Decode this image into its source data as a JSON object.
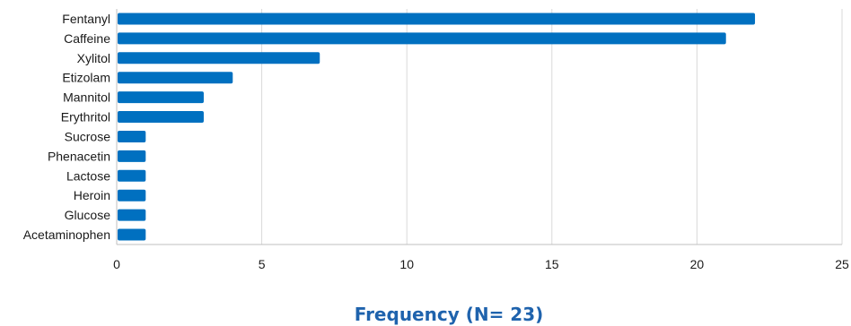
{
  "chart_data": {
    "type": "bar",
    "orientation": "horizontal",
    "categories": [
      "Fentanyl",
      "Caffeine",
      "Xylitol",
      "Etizolam",
      "Mannitol",
      "Erythritol",
      "Sucrose",
      "Phenacetin",
      "Lactose",
      "Heroin",
      "Glucose",
      "Acetaminophen"
    ],
    "values": [
      22,
      21,
      7,
      4,
      3,
      3,
      1,
      1,
      1,
      1,
      1,
      1
    ],
    "xlabel": "Frequency (N= 23)",
    "xlim": [
      0,
      25
    ],
    "xticks": [
      "0",
      "5",
      "10",
      "15",
      "20",
      "25"
    ],
    "grid": true,
    "bar_color": "#0070c0",
    "title_color": "#1f63ad"
  }
}
